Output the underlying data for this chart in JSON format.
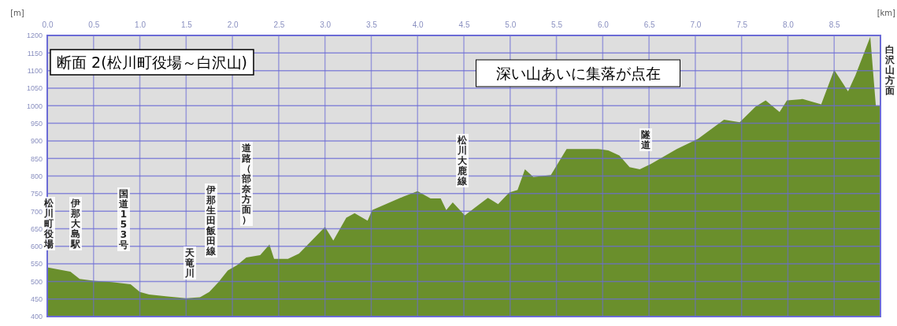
{
  "chart_data": {
    "type": "area",
    "title": "断面 2(松川町役場～白沢山)",
    "xlabel": "[km]",
    "ylabel": "[m]",
    "xlim": [
      0,
      9.0
    ],
    "ylim": [
      400,
      1200
    ],
    "xticks": [
      {
        "value": 0,
        "label": "0.0"
      },
      {
        "value": 0.5,
        "label": "0.5"
      },
      {
        "value": 1,
        "label": "1.0"
      },
      {
        "value": 1.5,
        "label": "1.5"
      },
      {
        "value": 2,
        "label": "2.0"
      },
      {
        "value": 2.5,
        "label": "2.5"
      },
      {
        "value": 3,
        "label": "3.0"
      },
      {
        "value": 3.5,
        "label": "3.5"
      },
      {
        "value": 4,
        "label": "4.0"
      },
      {
        "value": 4.5,
        "label": "4.5"
      },
      {
        "value": 5,
        "label": "5.0"
      },
      {
        "value": 5.5,
        "label": "5.5"
      },
      {
        "value": 6,
        "label": "6.0"
      },
      {
        "value": 6.5,
        "label": "6.5"
      },
      {
        "value": 7,
        "label": "7.0"
      },
      {
        "value": 7.5,
        "label": "7.5"
      },
      {
        "value": 8,
        "label": "8.0"
      },
      {
        "value": 8.5,
        "label": "8.5"
      }
    ],
    "yticks": [
      400,
      450,
      500,
      550,
      600,
      650,
      700,
      750,
      800,
      850,
      900,
      950,
      1000,
      1050,
      1100,
      1150,
      1200
    ],
    "grid": true,
    "series": [
      {
        "color": "#6a8f2c",
        "x": [
          0,
          0.1,
          0.25,
          0.35,
          0.5,
          0.7,
          0.9,
          1.0,
          1.1,
          1.3,
          1.5,
          1.65,
          1.75,
          1.85,
          1.95,
          2.05,
          2.15,
          2.3,
          2.4,
          2.45,
          2.6,
          2.72,
          3.0,
          3.09,
          3.23,
          3.32,
          3.46,
          3.51,
          3.85,
          4.0,
          4.14,
          4.25,
          4.31,
          4.38,
          4.51,
          4.76,
          4.87,
          4.99,
          5.08,
          5.16,
          5.25,
          5.44,
          5.61,
          5.95,
          6.06,
          6.18,
          6.29,
          6.4,
          6.52,
          6.8,
          7.03,
          7.31,
          7.48,
          7.65,
          7.76,
          7.91,
          7.99,
          8.16,
          8.36,
          8.5,
          8.65,
          8.73,
          8.89,
          8.95,
          9.0
        ],
        "values": [
          540,
          535,
          528,
          507,
          502,
          498,
          492,
          470,
          463,
          457,
          452,
          455,
          470,
          498,
          531,
          546,
          568,
          575,
          605,
          564,
          564,
          579,
          655,
          616,
          681,
          694,
          673,
          703,
          742,
          757,
          736,
          736,
          703,
          725,
          688,
          738,
          720,
          753,
          760,
          819,
          797,
          803,
          877,
          877,
          873,
          858,
          825,
          819,
          834,
          877,
          906,
          960,
          953,
          997,
          1015,
          982,
          1015,
          1019,
          1004,
          1102,
          1041,
          1087,
          1196,
          1000,
          1000
        ]
      }
    ],
    "annotations": [
      "深い山あいに集落が点在",
      "松川町役場",
      "伊那大島駅",
      "国道153号",
      "天竜川",
      "伊那生田飯田線",
      "道路（部奈方面）",
      "松川大鹿線",
      "隧道",
      "白沢山方面"
    ]
  }
}
